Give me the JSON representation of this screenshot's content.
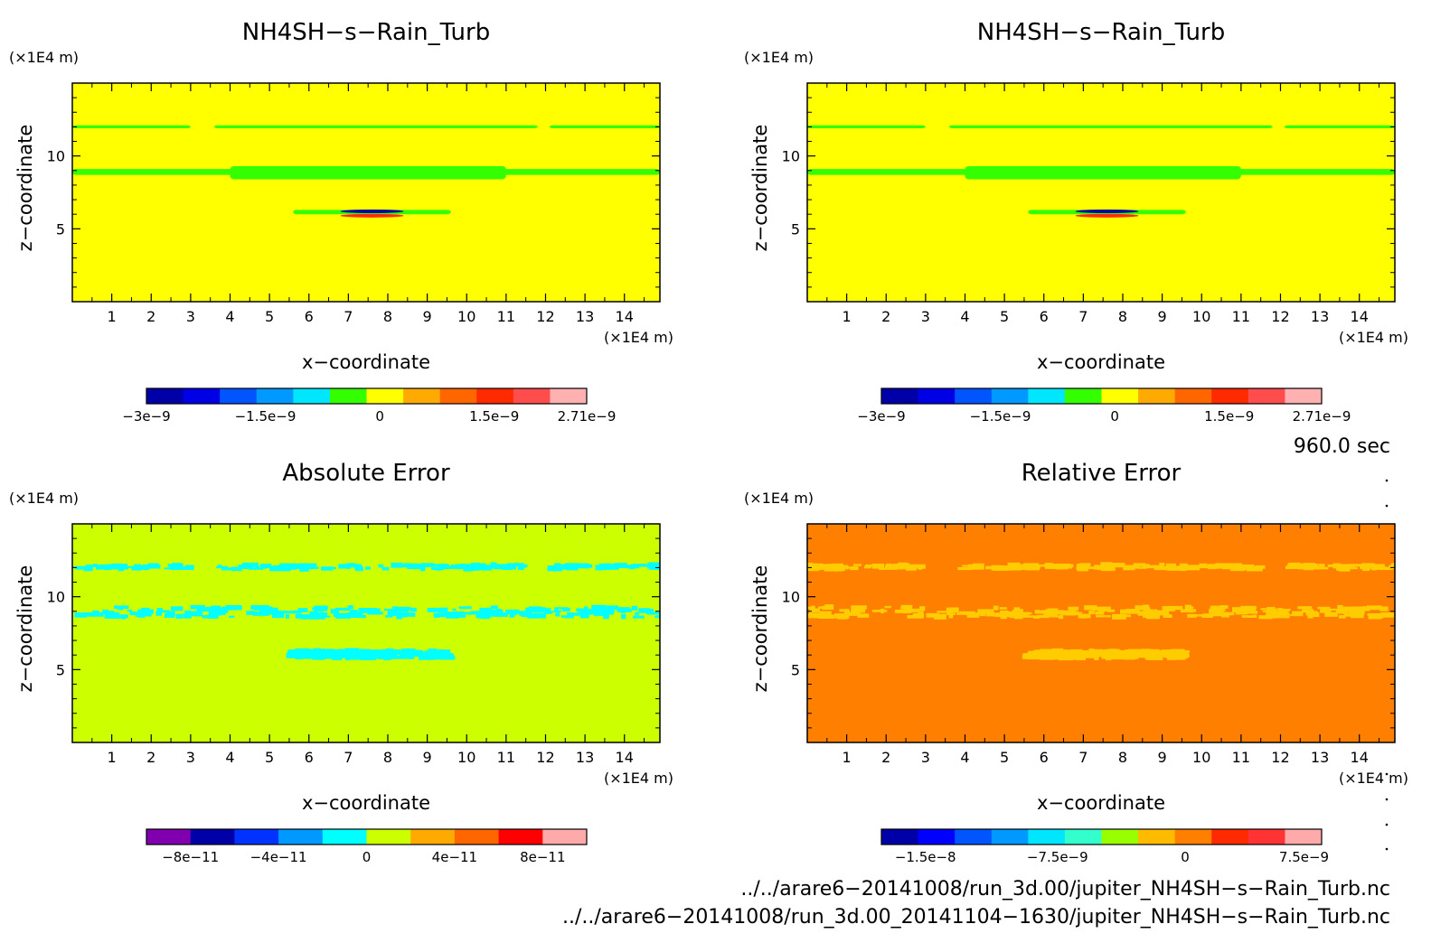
{
  "chart_data": [
    {
      "type": "heatmap",
      "title": "NH4SH−s−Rain_Turb",
      "xlabel": "x−coordinate",
      "ylabel": "z−coordinate",
      "x_unit": "(×1E4 m)",
      "z_unit": "(×1E4 m)",
      "x_ticks": [
        "1",
        "2",
        "3",
        "4",
        "5",
        "6",
        "7",
        "8",
        "9",
        "10",
        "11",
        "12",
        "13",
        "14"
      ],
      "z_ticks": [
        "5",
        "10"
      ],
      "xlim": [
        0,
        14.9
      ],
      "zlim": [
        0,
        15
      ],
      "background_color": "#ffff00",
      "colorbar": {
        "colors": [
          "#0000a8",
          "#0000e6",
          "#0055ff",
          "#0099ff",
          "#00e6ff",
          "#33ff00",
          "#ffff00",
          "#ffaa00",
          "#ff6600",
          "#ff2a00",
          "#ff4d4d",
          "#ffb0b0"
        ],
        "tick_labels": [
          "−3e−9",
          "−1.5e−9",
          "0",
          "1.5e−9",
          "2.71e−9"
        ]
      },
      "features": [
        {
          "kind": "band",
          "color": "#33ff00",
          "x": [
            0,
            14.9
          ],
          "z": [
            11.9,
            12.1
          ],
          "gaps": [
            [
              3.0,
              3.6
            ],
            [
              11.8,
              12.1
            ]
          ]
        },
        {
          "kind": "band",
          "color": "#33ff00",
          "x": [
            0,
            14.9
          ],
          "z": [
            8.7,
            9.1
          ]
        },
        {
          "kind": "band",
          "color": "#33ff00",
          "x": [
            4,
            11
          ],
          "z": [
            8.4,
            9.3
          ]
        },
        {
          "kind": "band",
          "color": "#33ff00",
          "x": [
            5.6,
            9.6
          ],
          "z": [
            6.0,
            6.3
          ]
        },
        {
          "kind": "blob",
          "color": "#0000a8",
          "x": [
            6.8,
            8.4
          ],
          "z": [
            6.1,
            6.3
          ]
        },
        {
          "kind": "blob",
          "color": "#ff2a00",
          "x": [
            6.8,
            8.4
          ],
          "z": [
            5.8,
            6.0
          ]
        }
      ]
    },
    {
      "type": "heatmap",
      "title": "NH4SH−s−Rain_Turb",
      "xlabel": "x−coordinate",
      "ylabel": "z−coordinate",
      "x_unit": "(×1E4 m)",
      "z_unit": "(×1E4 m)",
      "x_ticks": [
        "1",
        "2",
        "3",
        "4",
        "5",
        "6",
        "7",
        "8",
        "9",
        "10",
        "11",
        "12",
        "13",
        "14"
      ],
      "z_ticks": [
        "5",
        "10"
      ],
      "xlim": [
        0,
        14.9
      ],
      "zlim": [
        0,
        15
      ],
      "background_color": "#ffff00",
      "colorbar": {
        "colors": [
          "#0000a8",
          "#0000e6",
          "#0055ff",
          "#0099ff",
          "#00e6ff",
          "#33ff00",
          "#ffff00",
          "#ffaa00",
          "#ff6600",
          "#ff2a00",
          "#ff4d4d",
          "#ffb0b0"
        ],
        "tick_labels": [
          "−3e−9",
          "−1.5e−9",
          "0",
          "1.5e−9",
          "2.71e−9"
        ]
      },
      "features": [
        {
          "kind": "band",
          "color": "#33ff00",
          "x": [
            0,
            14.9
          ],
          "z": [
            11.9,
            12.1
          ],
          "gaps": [
            [
              3.0,
              3.6
            ],
            [
              11.8,
              12.1
            ]
          ]
        },
        {
          "kind": "band",
          "color": "#33ff00",
          "x": [
            0,
            14.9
          ],
          "z": [
            8.7,
            9.1
          ]
        },
        {
          "kind": "band",
          "color": "#33ff00",
          "x": [
            4,
            11
          ],
          "z": [
            8.4,
            9.3
          ]
        },
        {
          "kind": "band",
          "color": "#33ff00",
          "x": [
            5.6,
            9.6
          ],
          "z": [
            6.0,
            6.3
          ]
        },
        {
          "kind": "blob",
          "color": "#0000a8",
          "x": [
            6.8,
            8.4
          ],
          "z": [
            6.1,
            6.3
          ]
        },
        {
          "kind": "blob",
          "color": "#ff2a00",
          "x": [
            6.8,
            8.4
          ],
          "z": [
            5.8,
            6.0
          ]
        }
      ]
    },
    {
      "type": "heatmap",
      "title": "Absolute Error",
      "xlabel": "x−coordinate",
      "ylabel": "z−coordinate",
      "x_unit": "(×1E4 m)",
      "z_unit": "(×1E4 m)",
      "x_ticks": [
        "1",
        "2",
        "3",
        "4",
        "5",
        "6",
        "7",
        "8",
        "9",
        "10",
        "11",
        "12",
        "13",
        "14"
      ],
      "z_ticks": [
        "5",
        "10"
      ],
      "xlim": [
        0,
        14.9
      ],
      "zlim": [
        0,
        15
      ],
      "background_color": "#ccff00",
      "colorbar": {
        "colors": [
          "#8000b0",
          "#0000a8",
          "#0033ff",
          "#0099ff",
          "#00ffff",
          "#ccff00",
          "#ffaa00",
          "#ff6600",
          "#ff0000",
          "#ffaaaa"
        ],
        "tick_labels": [
          "−8e−11",
          "−4e−11",
          "0",
          "4e−11",
          "8e−11"
        ]
      },
      "features": [
        {
          "kind": "speckle",
          "color": "#00ffff",
          "x": [
            0,
            14.9
          ],
          "z": [
            11.9,
            12.2
          ],
          "gaps": [
            [
              3.0,
              3.6
            ],
            [
              11.5,
              12.1
            ]
          ]
        },
        {
          "kind": "speckle",
          "color": "#00ffff",
          "x": [
            0,
            14.9
          ],
          "z": [
            8.6,
            9.3
          ]
        },
        {
          "kind": "speckle",
          "color": "#00ffff",
          "x": [
            5.6,
            9.6
          ],
          "z": [
            5.8,
            6.3
          ]
        }
      ]
    },
    {
      "type": "heatmap",
      "title": "Relative Error",
      "xlabel": "x−coordinate",
      "ylabel": "z−coordinate",
      "x_unit": "(×1E4 m)",
      "z_unit": "(×1E4 m)",
      "x_ticks": [
        "1",
        "2",
        "3",
        "4",
        "5",
        "6",
        "7",
        "8",
        "9",
        "10",
        "11",
        "12",
        "13",
        "14"
      ],
      "z_ticks": [
        "5",
        "10"
      ],
      "xlim": [
        0,
        14.9
      ],
      "zlim": [
        0,
        15
      ],
      "background_color": "#ff8000",
      "colorbar": {
        "colors": [
          "#0000a8",
          "#0000ff",
          "#0055ff",
          "#0099ff",
          "#00e6ff",
          "#33ffcc",
          "#99ff00",
          "#ffbb00",
          "#ff8000",
          "#ff2a00",
          "#ff3333",
          "#ffaaaa"
        ],
        "tick_labels": [
          "−1.5e−8",
          "−7.5e−9",
          "0",
          "7.5e−9"
        ]
      },
      "features": [
        {
          "kind": "speckle",
          "color": "#ffcc00",
          "x": [
            0,
            14.9
          ],
          "z": [
            11.9,
            12.2
          ],
          "gaps": [
            [
              3.0,
              3.6
            ],
            [
              11.5,
              12.1
            ]
          ]
        },
        {
          "kind": "speckle",
          "color": "#ffcc00",
          "x": [
            0,
            14.9
          ],
          "z": [
            8.6,
            9.3
          ]
        },
        {
          "kind": "speckle",
          "color": "#ffcc00",
          "x": [
            5.6,
            9.6
          ],
          "z": [
            5.8,
            6.3
          ]
        }
      ]
    }
  ],
  "time_label": "960.0 sec",
  "footer_lines": [
    "../../arare6−20141008/run_3d.00/jupiter_NH4SH−s−Rain_Turb.nc",
    "../../arare6−20141008/run_3d.00_20141104−1630/jupiter_NH4SH−s−Rain_Turb.nc"
  ]
}
